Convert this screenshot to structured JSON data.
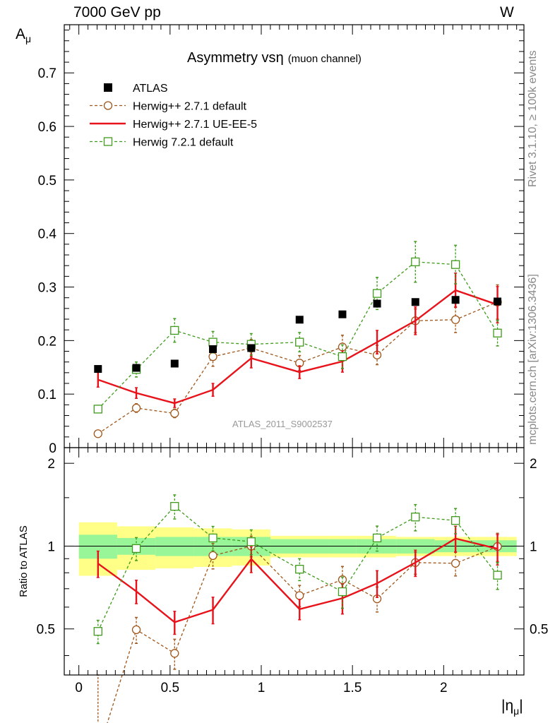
{
  "header": {
    "left": "7000 GeV pp",
    "right": "W"
  },
  "side_text": {
    "rivet": "Rivet 3.1.10, ≥ 100k events",
    "mcplots": "mcplots.cern.ch [arXiv:1306.3436]"
  },
  "chart_data": {
    "type": "line",
    "title": "Asymmetry vs",
    "title_symbol": "η",
    "title_note": "(muon channel)",
    "watermark": "ATLAS_2011_S9002537",
    "ylabel": "A",
    "ylabel_sub": "μ",
    "xlabel": "|η",
    "xlabel_sub": "μ",
    "xlabel_end": "|",
    "xlim": [
      -0.08,
      2.44
    ],
    "ylim": [
      0,
      0.79
    ],
    "xticks": [
      0,
      0.5,
      1,
      1.5,
      2
    ],
    "xtick_labels": [
      "0",
      "0.5",
      "1",
      "1.5",
      "2"
    ],
    "yticks": [
      0,
      0.1,
      0.2,
      0.3,
      0.4,
      0.5,
      0.6,
      0.7
    ],
    "ytick_labels": [
      "0",
      "0.1",
      "0.2",
      "0.3",
      "0.4",
      "0.5",
      "0.6",
      "0.7"
    ],
    "x": [
      0.105,
      0.315,
      0.525,
      0.735,
      0.945,
      1.21,
      1.445,
      1.635,
      1.845,
      2.065,
      2.295
    ],
    "x_edges": [
      0.0,
      0.21,
      0.42,
      0.63,
      0.84,
      1.05,
      1.37,
      1.52,
      1.74,
      1.95,
      2.18,
      2.4
    ],
    "data": {
      "name": "ATLAS",
      "values": [
        0.147,
        0.149,
        0.157,
        0.184,
        0.186,
        0.239,
        0.249,
        0.269,
        0.272,
        0.276,
        0.273
      ]
    },
    "legend_position": "top-left",
    "series": [
      {
        "name": "Herwig++ 2.7.1 default",
        "color": "#a0561a",
        "marker": "circle",
        "style": "dashed",
        "values": [
          0.026,
          0.074,
          0.064,
          0.17,
          0.186,
          0.158,
          0.188,
          0.173,
          0.237,
          0.239,
          0.272
        ],
        "errors": [
          0.005,
          0.008,
          0.008,
          0.018,
          0.016,
          0.014,
          0.022,
          0.018,
          0.022,
          0.024,
          0.032
        ]
      },
      {
        "name": "Herwig++ 2.7.1 UE-EE-5",
        "color": "#e8121b",
        "marker": "none",
        "style": "solid",
        "values": [
          0.127,
          0.102,
          0.083,
          0.108,
          0.167,
          0.141,
          0.161,
          0.197,
          0.237,
          0.294,
          0.267
        ],
        "errors": [
          0.014,
          0.01,
          0.008,
          0.012,
          0.018,
          0.012,
          0.02,
          0.022,
          0.026,
          0.032,
          0.034
        ]
      },
      {
        "name": "Herwig 7.2.1 default",
        "color": "#3f9b1c",
        "marker": "square",
        "style": "dashed",
        "values": [
          0.072,
          0.146,
          0.219,
          0.197,
          0.193,
          0.197,
          0.17,
          0.288,
          0.347,
          0.342,
          0.214
        ],
        "errors": [
          0.007,
          0.014,
          0.022,
          0.02,
          0.02,
          0.018,
          0.022,
          0.03,
          0.038,
          0.036,
          0.024
        ]
      }
    ],
    "ratio": {
      "ylabel": "Ratio to ATLAS",
      "ylim": [
        0.34,
        2.28
      ],
      "yticks": [
        0.5,
        1,
        2
      ],
      "ytick_labels": [
        "0.5",
        "1",
        "2"
      ],
      "band_inner": [
        [
          0.9,
          1.1
        ],
        [
          0.93,
          1.07
        ],
        [
          0.92,
          1.08
        ],
        [
          0.92,
          1.08
        ],
        [
          0.92,
          1.08
        ],
        [
          0.94,
          1.06
        ],
        [
          0.94,
          1.06
        ],
        [
          0.94,
          1.06
        ],
        [
          0.94,
          1.06
        ],
        [
          0.95,
          1.05
        ],
        [
          0.95,
          1.05
        ]
      ],
      "band_outer": [
        [
          0.78,
          1.22
        ],
        [
          0.82,
          1.18
        ],
        [
          0.83,
          1.17
        ],
        [
          0.84,
          1.16
        ],
        [
          0.85,
          1.15
        ],
        [
          0.91,
          1.09
        ],
        [
          0.91,
          1.09
        ],
        [
          0.91,
          1.09
        ],
        [
          0.92,
          1.08
        ],
        [
          0.92,
          1.08
        ],
        [
          0.92,
          1.08
        ]
      ]
    }
  }
}
